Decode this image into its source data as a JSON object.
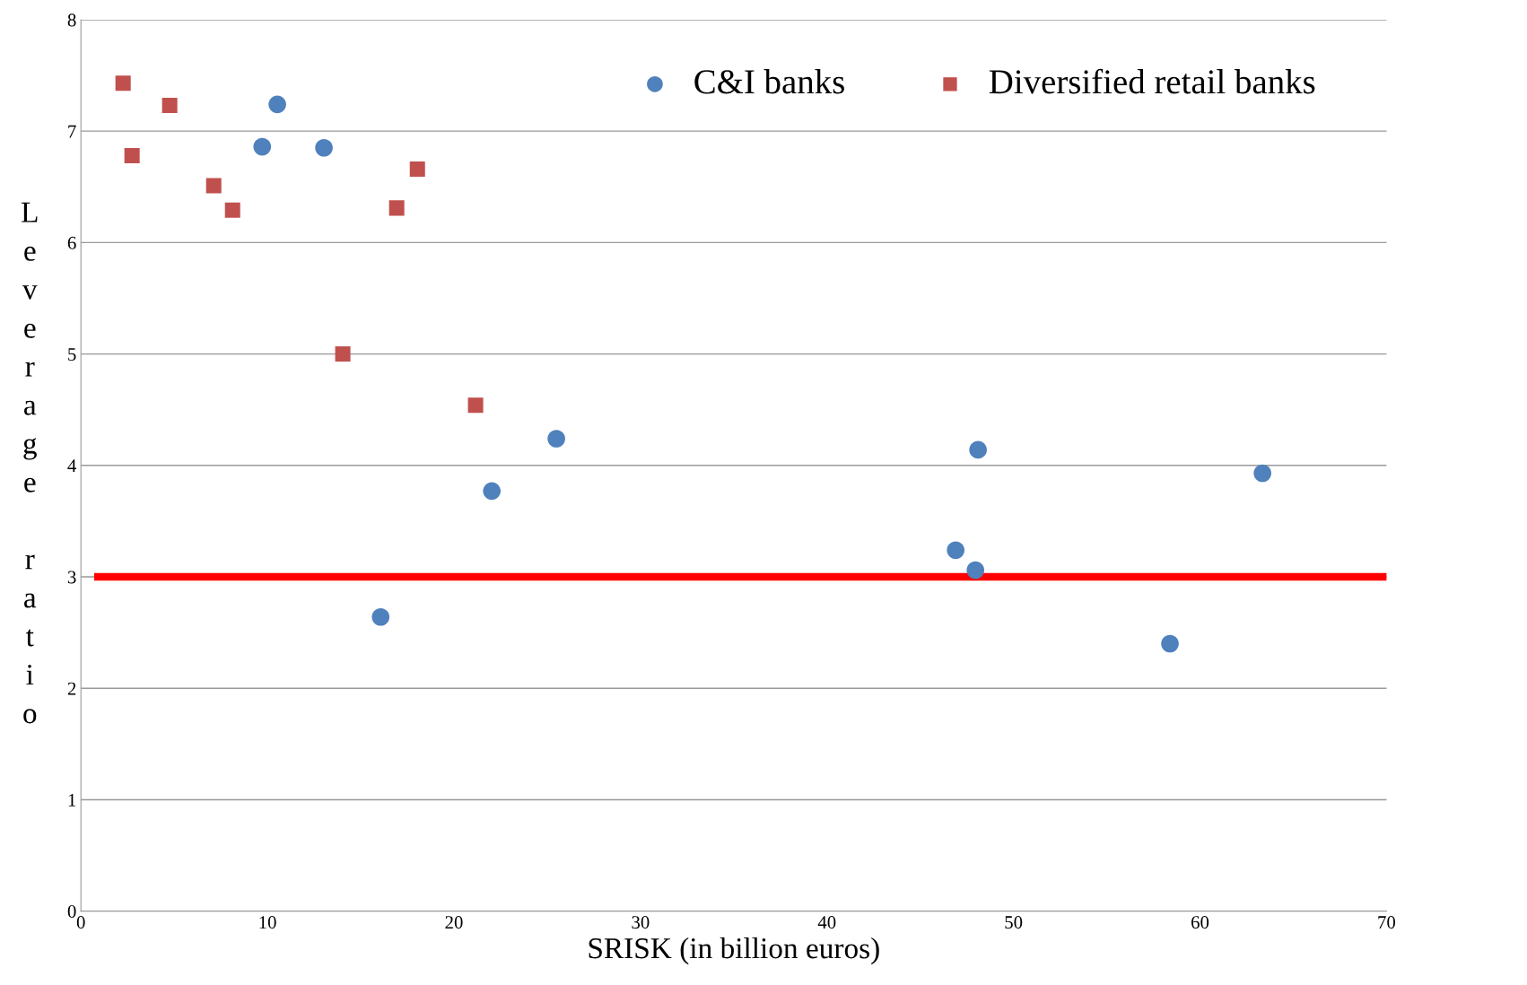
{
  "chart_data": {
    "type": "scatter",
    "xlabel": "SRISK (in billion euros)",
    "ylabel": "Leverage ratio",
    "xlim": [
      0,
      70
    ],
    "xticks": [
      0,
      10,
      20,
      30,
      40,
      50,
      60,
      70
    ],
    "ylim": [
      0,
      8
    ],
    "yticks": [
      0,
      1,
      2,
      3,
      4,
      5,
      6,
      7,
      8
    ],
    "grid": "y",
    "legend": "top right",
    "series": [
      {
        "name": "C&I banks",
        "color": "#4f81bd",
        "marker": "circle",
        "x": [
          9.72,
          10.53,
          13.03,
          16.07,
          22.03,
          25.49,
          46.9,
          47.96,
          48.1,
          58.39,
          63.35
        ],
        "values": [
          6.86,
          7.24,
          6.85,
          2.64,
          3.77,
          4.24,
          3.24,
          3.06,
          4.14,
          2.4,
          3.93
        ]
      },
      {
        "name": "Diversified retail banks",
        "color": "#c0504d",
        "marker": "square",
        "x": [
          2.26,
          2.74,
          4.76,
          7.12,
          8.13,
          14.04,
          16.93,
          18.04,
          21.16
        ],
        "values": [
          7.43,
          6.78,
          7.23,
          6.51,
          6.29,
          5.0,
          6.31,
          6.66,
          4.54
        ]
      }
    ],
    "ref_lines": [
      {
        "axis": "y",
        "value": 3,
        "color": "#ff0000"
      }
    ]
  }
}
